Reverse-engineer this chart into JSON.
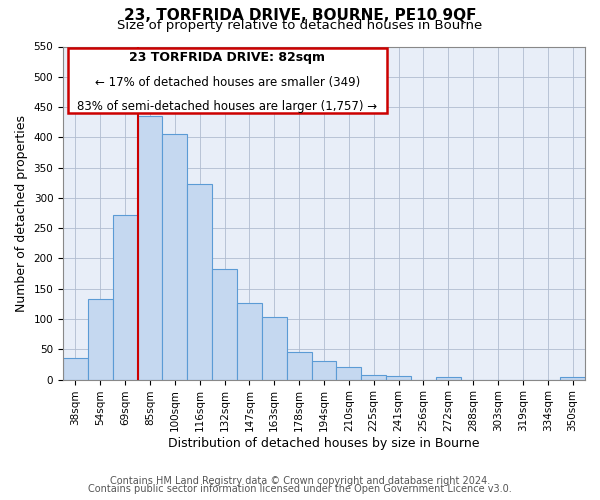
{
  "title": "23, TORFRIDA DRIVE, BOURNE, PE10 9QF",
  "subtitle": "Size of property relative to detached houses in Bourne",
  "xlabel": "Distribution of detached houses by size in Bourne",
  "ylabel": "Number of detached properties",
  "bar_labels": [
    "38sqm",
    "54sqm",
    "69sqm",
    "85sqm",
    "100sqm",
    "116sqm",
    "132sqm",
    "147sqm",
    "163sqm",
    "178sqm",
    "194sqm",
    "210sqm",
    "225sqm",
    "241sqm",
    "256sqm",
    "272sqm",
    "288sqm",
    "303sqm",
    "319sqm",
    "334sqm",
    "350sqm"
  ],
  "bar_values": [
    35,
    133,
    272,
    435,
    405,
    323,
    182,
    126,
    103,
    46,
    30,
    20,
    8,
    6,
    0,
    5,
    0,
    0,
    0,
    0,
    5
  ],
  "bar_color": "#c5d8f0",
  "bar_edge_color": "#5b9bd5",
  "vline_x_index": 3,
  "vline_color": "#cc0000",
  "annotation_title": "23 TORFRIDA DRIVE: 82sqm",
  "annotation_line1": "← 17% of detached houses are smaller (349)",
  "annotation_line2": "83% of semi-detached houses are larger (1,757) →",
  "annotation_box_edge": "#cc0000",
  "ylim": [
    0,
    550
  ],
  "yticks": [
    0,
    50,
    100,
    150,
    200,
    250,
    300,
    350,
    400,
    450,
    500,
    550
  ],
  "footer1": "Contains HM Land Registry data © Crown copyright and database right 2024.",
  "footer2": "Contains public sector information licensed under the Open Government Licence v3.0.",
  "background_color": "#ffffff",
  "plot_bg_color": "#e8eef8",
  "grid_color": "#b0bcd0",
  "title_fontsize": 11,
  "subtitle_fontsize": 9.5,
  "axis_label_fontsize": 9,
  "tick_fontsize": 7.5,
  "annotation_title_fontsize": 9,
  "annotation_text_fontsize": 8.5,
  "footer_fontsize": 7
}
